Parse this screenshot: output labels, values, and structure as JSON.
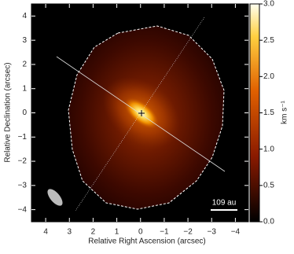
{
  "chart_data": {
    "type": "image",
    "x_label": "Relative Right Ascension (arcsec)",
    "y_label": "Relative Declination (arcsec)",
    "xlim": [
      4.6,
      -4.55
    ],
    "ylim": [
      -4.5,
      4.5
    ],
    "xticks": [
      4,
      3,
      2,
      1,
      0,
      {
        "value": -1,
        "label": "−1"
      },
      {
        "value": -2,
        "label": "−2"
      },
      {
        "value": -3,
        "label": "−3"
      },
      {
        "value": -4,
        "label": "−4"
      }
    ],
    "yticks": [
      {
        "value": -4,
        "label": "−4"
      },
      {
        "value": -3,
        "label": "−3"
      },
      {
        "value": -2,
        "label": "−2"
      },
      {
        "value": -1,
        "label": "−1"
      },
      0,
      1,
      2,
      3,
      4
    ],
    "colorbar_label": "km s⁻¹",
    "clim": [
      0,
      3
    ],
    "cticks": [
      {
        "value": 0,
        "label": "0.0"
      },
      0.5,
      {
        "value": 1,
        "label": "1.0"
      },
      1.5,
      {
        "value": 2,
        "label": "2.0"
      },
      2.5,
      {
        "value": 3,
        "label": "3.0"
      }
    ],
    "scale_bar_label": "109 au"
  }
}
